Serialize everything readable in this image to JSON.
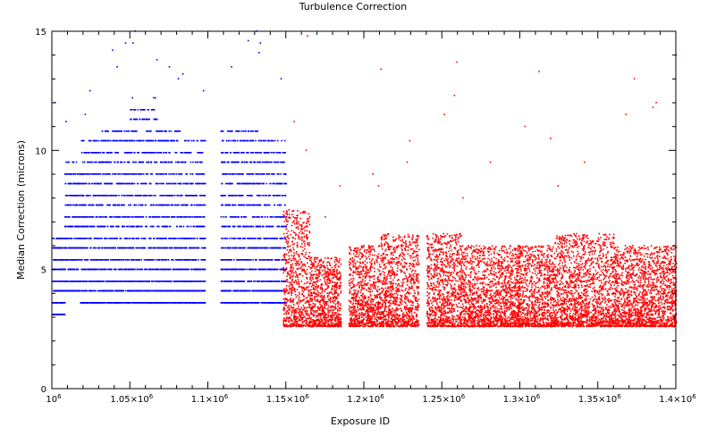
{
  "chart_data": {
    "type": "scatter",
    "title": "Turbulence Correction",
    "xlabel": "Exposure ID",
    "ylabel": "Median Correction (microns)",
    "xlim": [
      1000000,
      1400000
    ],
    "ylim": [
      0,
      15
    ],
    "x_ticks": [
      {
        "value": 1000000,
        "label": "10",
        "sup": "6"
      },
      {
        "value": 1050000,
        "label": "1.05×10",
        "sup": "6"
      },
      {
        "value": 1100000,
        "label": "1.1×10",
        "sup": "6"
      },
      {
        "value": 1150000,
        "label": "1.15×10",
        "sup": "6"
      },
      {
        "value": 1200000,
        "label": "1.2×10",
        "sup": "6"
      },
      {
        "value": 1250000,
        "label": "1.25×10",
        "sup": "6"
      },
      {
        "value": 1300000,
        "label": "1.3×10",
        "sup": "6"
      },
      {
        "value": 1350000,
        "label": "1.35×10",
        "sup": "6"
      },
      {
        "value": 1400000,
        "label": "1.4×10",
        "sup": "6"
      }
    ],
    "y_ticks": [
      {
        "value": 0,
        "label": "0"
      },
      {
        "value": 5,
        "label": "5"
      },
      {
        "value": 10,
        "label": "10"
      },
      {
        "value": 15,
        "label": "15"
      }
    ],
    "grid": false,
    "series": [
      {
        "color": "#0000ff",
        "x_range": [
          1000000,
          1150000
        ],
        "quantized_levels": [
          3.1,
          3.6,
          4.1,
          4.5,
          5.0,
          5.4,
          5.9,
          6.3,
          6.8,
          7.2,
          7.7,
          8.1,
          8.6,
          9.0,
          9.5,
          9.9,
          10.4,
          10.8,
          11.3,
          11.7,
          12.2,
          12.6,
          13.1,
          13.5,
          14.0,
          14.4,
          14.9
        ],
        "segments": [
          {
            "x": [
              1000000,
              1008000
            ],
            "typical": [
              3.0,
              6.5
            ],
            "outliers": [
              12.0
            ]
          },
          {
            "x": [
              1008000,
              1018000
            ],
            "typical": [
              4.0,
              9.5
            ],
            "outliers": [
              11.2
            ]
          },
          {
            "x": [
              1018000,
              1030000
            ],
            "typical": [
              3.5,
              10.5
            ],
            "outliers": [
              12.5,
              11.5
            ]
          },
          {
            "x": [
              1030000,
              1050000
            ],
            "typical": [
              3.5,
              11.0
            ],
            "outliers": [
              14.5,
              14.2,
              13.5
            ]
          },
          {
            "x": [
              1050000,
              1068000
            ],
            "typical": [
              3.5,
              12.0
            ],
            "outliers": [
              15.0,
              14.5,
              13.8
            ]
          },
          {
            "x": [
              1068000,
              1082000
            ],
            "typical": [
              3.5,
              11.0
            ],
            "outliers": [
              13.5,
              13.0
            ]
          },
          {
            "x": [
              1082000,
              1098000
            ],
            "typical": [
              3.5,
              10.5
            ],
            "outliers": [
              13.2,
              12.5
            ]
          },
          {
            "x": [
              1108000,
              1132000
            ],
            "typical": [
              3.5,
              11.0
            ],
            "outliers": [
              15.0,
              14.6,
              13.5
            ]
          },
          {
            "x": [
              1132000,
              1150000
            ],
            "typical": [
              3.5,
              10.5
            ],
            "outliers": [
              14.5,
              14.1,
              13.0
            ]
          }
        ]
      },
      {
        "color": "#ff0000",
        "x_range": [
          1148000,
          1400000
        ],
        "segments": [
          {
            "x": [
              1148000,
              1165000
            ],
            "typical": [
              2.6,
              7.5
            ],
            "outliers": [
              14.8,
              11.2,
              10.0
            ]
          },
          {
            "x": [
              1165000,
              1185000
            ],
            "typical": [
              2.6,
              5.5
            ],
            "outliers": [
              8.5,
              7.2
            ]
          },
          {
            "x": [
              1190000,
              1210000
            ],
            "typical": [
              2.6,
              6.0
            ],
            "outliers": [
              8.5,
              9.0
            ]
          },
          {
            "x": [
              1210000,
              1235000
            ],
            "typical": [
              2.6,
              6.5
            ],
            "outliers": [
              13.4,
              10.4,
              9.5
            ]
          },
          {
            "x": [
              1240000,
              1262000
            ],
            "typical": [
              2.6,
              6.5
            ],
            "outliers": [
              13.7,
              12.3,
              11.5
            ]
          },
          {
            "x": [
              1262000,
              1300000
            ],
            "typical": [
              2.6,
              6.0
            ],
            "outliers": [
              9.5,
              8.0
            ]
          },
          {
            "x": [
              1298000,
              1322000
            ],
            "typical": [
              2.6,
              6.0
            ],
            "outliers": [
              13.3,
              11.0,
              10.5
            ]
          },
          {
            "x": [
              1322000,
              1360000
            ],
            "typical": [
              2.6,
              6.5
            ],
            "outliers": [
              9.5,
              8.5
            ]
          },
          {
            "x": [
              1360000,
              1400000
            ],
            "typical": [
              2.6,
              6.0
            ],
            "outliers": [
              14.0,
              13.0,
              12.0,
              11.8,
              11.5
            ]
          }
        ]
      }
    ]
  }
}
